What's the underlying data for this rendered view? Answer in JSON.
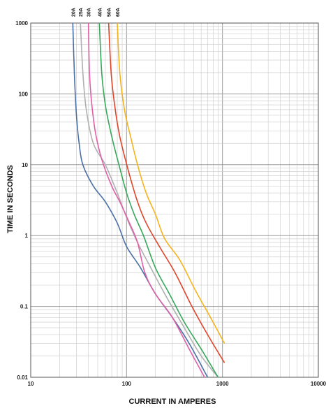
{
  "chart_data": {
    "type": "line",
    "xlabel": "CURRENT IN AMPERES",
    "ylabel": "TIME IN SECONDS",
    "x_scale": "log",
    "y_scale": "log",
    "xlim": [
      10,
      10000
    ],
    "ylim": [
      0.01,
      1000
    ],
    "x_ticks": [
      "10",
      "100",
      "1000",
      "10000"
    ],
    "y_ticks": [
      "1000",
      "100",
      "10",
      "1",
      "0.1",
      "0.01"
    ],
    "grid": true,
    "series": [
      {
        "name": "20A",
        "color": "#4a6fa5",
        "top_x": 27.5,
        "points": [
          [
            27.5,
            1000
          ],
          [
            28.5,
            200
          ],
          [
            30,
            50
          ],
          [
            32,
            20
          ],
          [
            35,
            10
          ],
          [
            45,
            5
          ],
          [
            60,
            3
          ],
          [
            80,
            1.5
          ],
          [
            100,
            0.7
          ],
          [
            140,
            0.35
          ],
          [
            200,
            0.15
          ],
          [
            300,
            0.07
          ],
          [
            450,
            0.03
          ],
          [
            700,
            0.01
          ]
        ]
      },
      {
        "name": "25A",
        "color": "#b0b0b0",
        "top_x": 33,
        "points": [
          [
            33,
            1000
          ],
          [
            35,
            200
          ],
          [
            38,
            60
          ],
          [
            45,
            20
          ],
          [
            60,
            10
          ],
          [
            80,
            4
          ],
          [
            100,
            1.8
          ],
          [
            130,
            0.8
          ],
          [
            170,
            0.4
          ],
          [
            250,
            0.15
          ],
          [
            400,
            0.05
          ],
          [
            600,
            0.02
          ],
          [
            900,
            0.01
          ]
        ]
      },
      {
        "name": "30A",
        "color": "#e05fa8",
        "top_x": 40,
        "points": [
          [
            40,
            1000
          ],
          [
            41,
            200
          ],
          [
            43,
            80
          ],
          [
            47,
            30
          ],
          [
            55,
            12
          ],
          [
            70,
            5
          ],
          [
            85,
            3
          ],
          [
            105,
            1.6
          ],
          [
            130,
            0.8
          ],
          [
            155,
            0.3
          ],
          [
            200,
            0.15
          ],
          [
            300,
            0.07
          ],
          [
            450,
            0.025
          ],
          [
            650,
            0.01
          ]
        ]
      },
      {
        "name": "40A",
        "color": "#35a85a",
        "top_x": 52,
        "points": [
          [
            52,
            1000
          ],
          [
            55,
            200
          ],
          [
            60,
            70
          ],
          [
            70,
            25
          ],
          [
            85,
            9
          ],
          [
            100,
            4
          ],
          [
            120,
            2
          ],
          [
            150,
            1
          ],
          [
            200,
            0.35
          ],
          [
            280,
            0.15
          ],
          [
            400,
            0.06
          ],
          [
            600,
            0.025
          ],
          [
            900,
            0.01
          ]
        ]
      },
      {
        "name": "50A",
        "color": "#e0452a",
        "top_x": 65,
        "points": [
          [
            65,
            1000
          ],
          [
            69,
            200
          ],
          [
            75,
            70
          ],
          [
            85,
            25
          ],
          [
            105,
            8
          ],
          [
            130,
            3
          ],
          [
            160,
            1.5
          ],
          [
            220,
            0.7
          ],
          [
            320,
            0.3
          ],
          [
            480,
            0.1
          ],
          [
            700,
            0.04
          ],
          [
            1050,
            0.016
          ]
        ]
      },
      {
        "name": "60A",
        "color": "#f5b21a",
        "top_x": 80,
        "points": [
          [
            80,
            1000
          ],
          [
            85,
            200
          ],
          [
            95,
            60
          ],
          [
            110,
            25
          ],
          [
            130,
            10
          ],
          [
            160,
            4
          ],
          [
            200,
            2
          ],
          [
            250,
            0.9
          ],
          [
            360,
            0.45
          ],
          [
            520,
            0.17
          ],
          [
            750,
            0.07
          ],
          [
            1050,
            0.03
          ]
        ]
      }
    ]
  }
}
